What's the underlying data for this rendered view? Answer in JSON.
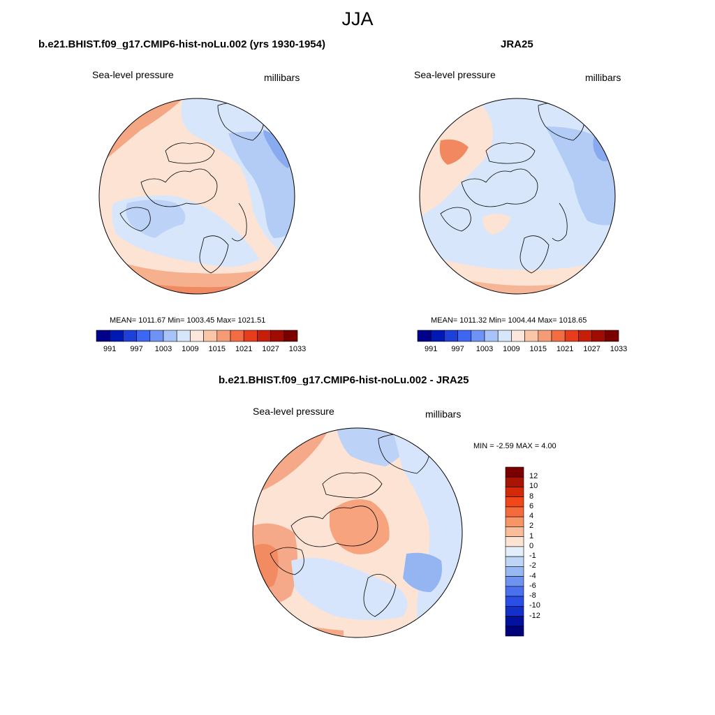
{
  "figure": {
    "title": "JJA"
  },
  "panels": [
    {
      "title": "b.e21.BHIST.f09_g17.CMIP6-hist-noLu.002 (yrs 1930-1954)",
      "variable": "Sea-level pressure",
      "units": "millibars",
      "stats_text": "MEAN= 1011.67  Min= 1003.45  Max= 1021.51",
      "stats": {
        "mean": 1011.67,
        "min": 1003.45,
        "max": 1021.51
      }
    },
    {
      "title": "JRA25",
      "variable": "Sea-level pressure",
      "units": "millibars",
      "stats_text": "MEAN= 1011.32  Min= 1004.44  Max= 1018.65",
      "stats": {
        "mean": 1011.32,
        "min": 1004.44,
        "max": 1018.65
      }
    },
    {
      "title": "b.e21.BHIST.f09_g17.CMIP6-hist-noLu.002 - JRA25",
      "variable": "Sea-level pressure",
      "units": "millibars",
      "stats_text": "MIN =  -2.59 MAX =   4.00",
      "stats": {
        "min": -2.59,
        "max": 4.0
      }
    }
  ],
  "colorbars": {
    "absolute": {
      "orientation": "horizontal",
      "colors": [
        "#00008b",
        "#0018b4",
        "#1e3fd8",
        "#3d66f2",
        "#6e93f5",
        "#a7c3f7",
        "#d6e6fb",
        "#fde7dc",
        "#f9c6a8",
        "#f59c77",
        "#f26d43",
        "#e83d1d",
        "#c71e0a",
        "#a00c04",
        "#7a0000"
      ],
      "tick_labels": [
        "991",
        "997",
        "1003",
        "1009",
        "1015",
        "1021",
        "1027",
        "1033"
      ]
    },
    "difference": {
      "orientation": "vertical",
      "colors_top_to_bottom": [
        "#7a0000",
        "#a91405",
        "#d42a08",
        "#f04818",
        "#f56b3c",
        "#f79566",
        "#fabd99",
        "#fde4d2",
        "#e3eefb",
        "#bed5f6",
        "#97b8f2",
        "#6e93f0",
        "#4a70ee",
        "#2a4fe6",
        "#1330c9",
        "#03129e",
        "#00007a"
      ],
      "tick_labels": [
        "12",
        "10",
        "8",
        "6",
        "4",
        "2",
        "1",
        "0",
        "-1",
        "-2",
        "-4",
        "-6",
        "-8",
        "-10",
        "-12"
      ]
    }
  },
  "map_data": {
    "projection": "north polar stereographic",
    "field": "JJA mean sea-level pressure",
    "legend_placement": "below (panels 1-2), right (difference panel)"
  }
}
